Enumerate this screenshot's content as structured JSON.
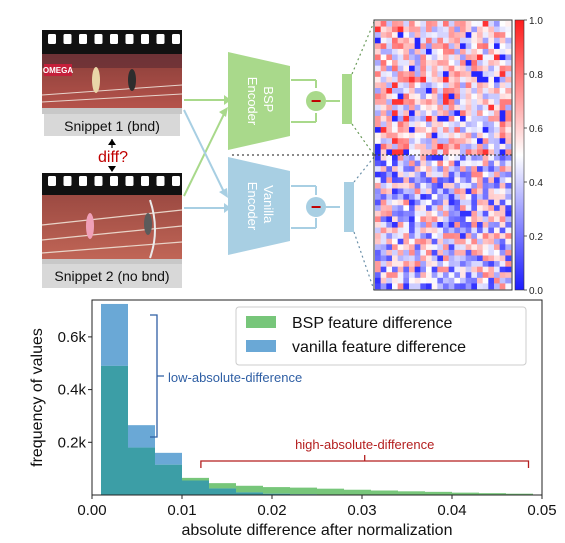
{
  "diagram": {
    "snippet1_label": "Snippet 1 (bnd)",
    "snippet2_label": "Snippet 2 (no bnd)",
    "diff_label": "diff?",
    "photo_text": "OMEGA",
    "bsp_encoder_label": [
      "BSP",
      "Encoder"
    ],
    "vanilla_encoder_label": [
      "Vanilla",
      "Encoder"
    ],
    "minus_symbol": "−",
    "colorbar_ticks": [
      "1.0",
      "0.8",
      "0.6",
      "0.4",
      "0.2",
      "0.0"
    ],
    "colors": {
      "bsp": "#a9d98b",
      "vanilla": "#a8cfe3",
      "minus": "#c00000",
      "diff": "#c00000"
    }
  },
  "chart_data": {
    "type": "bar",
    "xlabel": "absolute difference after normalization",
    "ylabel": "frequency of values",
    "xlim": [
      0,
      0.05
    ],
    "ylim": [
      0,
      740
    ],
    "x_ticks": [
      "0.00",
      "0.01",
      "0.02",
      "0.03",
      "0.04",
      "0.05"
    ],
    "y_ticks": [
      "0.2k",
      "0.4k",
      "0.6k"
    ],
    "bin_width": 0.003,
    "bin_starts": [
      0.001,
      0.004,
      0.007,
      0.01,
      0.013,
      0.016,
      0.019,
      0.022,
      0.025,
      0.028,
      0.031,
      0.034,
      0.037,
      0.04,
      0.043,
      0.046
    ],
    "legend_position": "top-right",
    "series": [
      {
        "name": "BSP feature difference",
        "color": "#77c67a",
        "values": [
          490,
          180,
          115,
          65,
          45,
          35,
          30,
          28,
          24,
          20,
          17,
          14,
          12,
          9,
          7,
          5
        ]
      },
      {
        "name": "vanilla feature difference",
        "color": "#6aa8d6",
        "values": [
          725,
          265,
          160,
          55,
          25,
          10,
          5,
          3,
          2,
          1,
          1,
          0,
          0,
          0,
          0,
          0
        ]
      }
    ],
    "overlap_color": "#3c9ea6",
    "annotations": {
      "low": "low-absolute-difference",
      "high": "high-absolute-difference",
      "low_color": "#2f5fa4",
      "high_color": "#b41f1f"
    }
  }
}
